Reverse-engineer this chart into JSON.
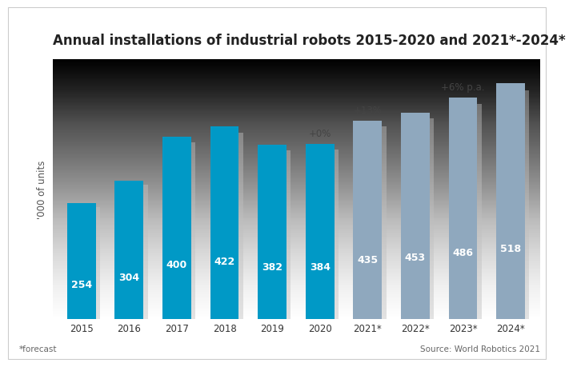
{
  "title": "Annual installations of industrial robots 2015-2020 and 2021*-2024*",
  "ylabel": "'000 of units",
  "categories": [
    "2015",
    "2016",
    "2017",
    "2018",
    "2019",
    "2020",
    "2021*",
    "2022*",
    "2023*",
    "2024*"
  ],
  "values": [
    254,
    304,
    400,
    422,
    382,
    384,
    435,
    453,
    486,
    518
  ],
  "bar_color_actual": "#0099c6",
  "bar_color_forecast": "#8fa8be",
  "annotations": [
    {
      "bar_idx": 5,
      "text": "+0%"
    },
    {
      "bar_idx": 6,
      "text": "+13%"
    },
    {
      "bar_idx": 8,
      "text": "+6% p.a."
    }
  ],
  "footnote": "*forecast",
  "source": "Source: World Robotics 2021",
  "title_fontsize": 12,
  "label_fontsize": 9,
  "ylabel_fontsize": 8.5,
  "annotation_fontsize": 8.5,
  "tick_fontsize": 8.5,
  "ylim_max": 570
}
